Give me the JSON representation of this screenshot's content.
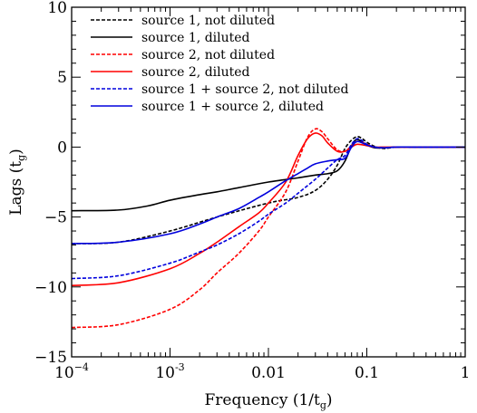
{
  "chart_data": {
    "type": "line",
    "xscale": "log",
    "xlim": [
      0.0001,
      1
    ],
    "ylim": [
      -15,
      10
    ],
    "grid": false,
    "legend_position": "top-left",
    "xlabel": "Frequency (1/t",
    "xlabel_sub": "g",
    "xlabel_close": ")",
    "ylabel": "Lags (t",
    "ylabel_sub": "g",
    "ylabel_close": ")",
    "x_ticks": [
      {
        "value": 0.0001,
        "label": "10",
        "sup": "−4"
      },
      {
        "value": 0.001,
        "label": "10",
        "sup": "-3"
      },
      {
        "value": 0.01,
        "label": "0.01",
        "sup": ""
      },
      {
        "value": 0.1,
        "label": "0.1",
        "sup": ""
      },
      {
        "value": 1,
        "label": "1",
        "sup": ""
      }
    ],
    "y_ticks": [
      {
        "value": 10,
        "label": "10"
      },
      {
        "value": 5,
        "label": "5"
      },
      {
        "value": 0,
        "label": "0"
      },
      {
        "value": -5,
        "label": "−5"
      },
      {
        "value": -10,
        "label": "−10"
      },
      {
        "value": -15,
        "label": "−15"
      }
    ],
    "series": [
      {
        "name": "source 1, not diluted",
        "color": "#000000",
        "dash": "dashed",
        "x": [
          0.0001,
          0.0003,
          0.001,
          0.003,
          0.01,
          0.02,
          0.03,
          0.04,
          0.05,
          0.06,
          0.07,
          0.08,
          0.09,
          0.1,
          0.12,
          0.15,
          0.2,
          0.3,
          0.5,
          1
        ],
        "y": [
          -6.9,
          -6.8,
          -6.0,
          -5.0,
          -4.0,
          -3.6,
          -3.1,
          -2.3,
          -1.3,
          -0.1,
          0.5,
          0.75,
          0.6,
          0.35,
          0.05,
          -0.1,
          0.0,
          0.0,
          0.0,
          0.0
        ]
      },
      {
        "name": "source 1, diluted",
        "color": "#000000",
        "dash": "solid",
        "x": [
          0.0001,
          0.0003,
          0.0006,
          0.001,
          0.002,
          0.003,
          0.005,
          0.01,
          0.02,
          0.03,
          0.04,
          0.05,
          0.06,
          0.07,
          0.08,
          0.1,
          0.12,
          0.15,
          0.2,
          0.3,
          0.5,
          1
        ],
        "y": [
          -4.55,
          -4.5,
          -4.2,
          -3.8,
          -3.4,
          -3.2,
          -2.9,
          -2.5,
          -2.2,
          -2.0,
          -1.9,
          -1.7,
          -1.0,
          0.1,
          0.55,
          0.15,
          -0.05,
          -0.05,
          0.0,
          0.0,
          0.0,
          0.0
        ]
      },
      {
        "name": "source 2, not diluted",
        "color": "#ff0000",
        "dash": "dashed",
        "x": [
          0.0001,
          0.0003,
          0.001,
          0.002,
          0.003,
          0.005,
          0.008,
          0.01,
          0.015,
          0.02,
          0.025,
          0.03,
          0.035,
          0.04,
          0.05,
          0.06,
          0.07,
          0.08,
          0.1,
          0.12,
          0.15,
          0.2,
          0.3,
          1
        ],
        "y": [
          -12.9,
          -12.7,
          -11.6,
          -10.2,
          -9.0,
          -7.6,
          -6.0,
          -5.0,
          -3.2,
          -1.0,
          0.7,
          1.3,
          1.1,
          0.6,
          -0.2,
          -0.3,
          0.1,
          0.4,
          0.2,
          0.0,
          -0.05,
          0.0,
          0.0,
          0.0
        ]
      },
      {
        "name": "source 2, diluted",
        "color": "#ff0000",
        "dash": "solid",
        "x": [
          0.0001,
          0.0003,
          0.001,
          0.002,
          0.003,
          0.005,
          0.008,
          0.01,
          0.015,
          0.02,
          0.025,
          0.03,
          0.035,
          0.04,
          0.05,
          0.06,
          0.07,
          0.08,
          0.1,
          0.12,
          0.15,
          0.2,
          0.3,
          1
        ],
        "y": [
          -9.9,
          -9.7,
          -8.7,
          -7.6,
          -6.8,
          -5.7,
          -4.7,
          -4.0,
          -2.5,
          -0.6,
          0.6,
          1.0,
          0.8,
          0.3,
          -0.3,
          -0.3,
          0.0,
          0.2,
          0.1,
          0.0,
          0.0,
          0.0,
          0.0,
          0.0
        ]
      },
      {
        "name": "source 1 + source 2, not diluted",
        "color": "#0000dd",
        "dash": "dashed",
        "x": [
          0.0001,
          0.0003,
          0.001,
          0.002,
          0.003,
          0.005,
          0.008,
          0.01,
          0.015,
          0.02,
          0.03,
          0.04,
          0.05,
          0.06,
          0.07,
          0.08,
          0.09,
          0.1,
          0.12,
          0.15,
          0.2,
          0.3,
          1
        ],
        "y": [
          -9.4,
          -9.2,
          -8.3,
          -7.5,
          -7.0,
          -6.2,
          -5.3,
          -4.8,
          -4.0,
          -3.3,
          -2.3,
          -1.5,
          -0.9,
          -0.6,
          0.2,
          0.6,
          0.45,
          0.2,
          0.0,
          -0.05,
          0.0,
          0.0,
          0.0
        ]
      },
      {
        "name": "source 1 + source 2, diluted",
        "color": "#0000dd",
        "dash": "solid",
        "x": [
          0.0001,
          0.0003,
          0.001,
          0.002,
          0.003,
          0.005,
          0.008,
          0.01,
          0.015,
          0.02,
          0.025,
          0.03,
          0.04,
          0.05,
          0.06,
          0.07,
          0.08,
          0.1,
          0.12,
          0.15,
          0.2,
          0.3,
          1
        ],
        "y": [
          -6.9,
          -6.8,
          -6.2,
          -5.5,
          -5.0,
          -4.4,
          -3.6,
          -3.2,
          -2.4,
          -1.9,
          -1.5,
          -1.2,
          -1.0,
          -0.9,
          -0.8,
          0.0,
          0.4,
          0.15,
          0.0,
          -0.05,
          0.0,
          0.0,
          0.0
        ]
      }
    ]
  }
}
